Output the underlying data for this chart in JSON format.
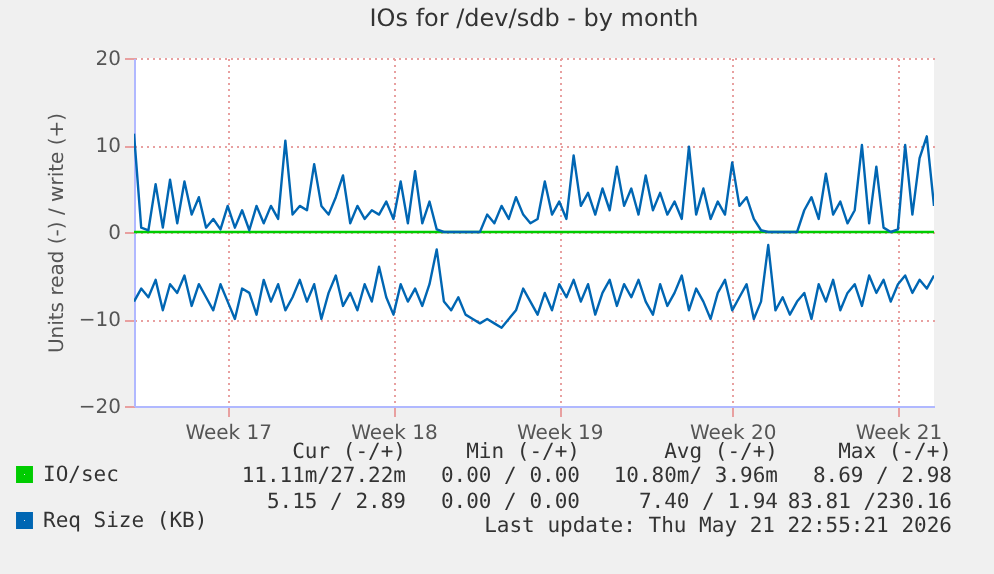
{
  "chart_data": {
    "type": "line",
    "title": "IOs for /dev/sdb - by month",
    "ylabel": "Units read (-) / write (+)",
    "categories": [
      null,
      null,
      null,
      null,
      null,
      null,
      null,
      null,
      null,
      null,
      null,
      null,
      null,
      "Week 17",
      null,
      null,
      null,
      null,
      null,
      null,
      null,
      null,
      null,
      null,
      null,
      null,
      null,
      null,
      null,
      null,
      null,
      null,
      null,
      null,
      null,
      null,
      "Week 18",
      null,
      null,
      null,
      null,
      null,
      null,
      null,
      null,
      null,
      null,
      null,
      null,
      null,
      null,
      null,
      null,
      null,
      null,
      null,
      null,
      null,
      null,
      "Week 19",
      null,
      null,
      null,
      null,
      null,
      null,
      null,
      null,
      null,
      null,
      null,
      null,
      null,
      null,
      null,
      null,
      null,
      null,
      null,
      null,
      null,
      null,
      null,
      "Week 20",
      null,
      null,
      null,
      null,
      null,
      null,
      null,
      null,
      null,
      null,
      null,
      null,
      null,
      null,
      null,
      null,
      null,
      null,
      null,
      null,
      null,
      null,
      "Week 21",
      null,
      null,
      null,
      null,
      null
    ],
    "ylim": [
      -20,
      20
    ],
    "yticks": [
      -20,
      -10,
      0,
      10,
      20
    ],
    "grid": true,
    "legend": "bottom left",
    "series": [
      {
        "name": "IO/sec",
        "color": "#00cc00",
        "values": [
          0,
          0,
          0,
          0,
          0,
          0,
          0,
          0,
          0,
          0,
          0,
          0,
          0,
          0,
          0,
          0,
          0,
          0,
          0,
          0,
          0,
          0,
          0,
          0,
          0,
          0,
          0,
          0,
          0,
          0,
          0,
          0,
          0,
          0,
          0,
          0,
          0,
          0,
          0,
          0,
          0,
          0,
          0,
          0,
          0,
          0,
          0,
          0,
          0,
          0,
          0,
          0,
          0,
          0,
          0,
          0,
          0,
          0,
          0,
          0,
          0,
          0,
          0,
          0,
          0,
          0,
          0,
          0,
          0,
          0,
          0,
          0,
          0,
          0,
          0,
          0,
          0,
          0,
          0,
          0,
          0,
          0,
          0,
          0,
          0,
          0,
          0,
          0,
          0,
          0,
          0,
          0,
          0,
          0,
          0,
          0,
          0,
          0,
          0,
          0,
          0,
          0,
          0,
          0,
          0,
          0,
          0,
          0,
          0,
          0,
          0,
          0
        ]
      },
      {
        "name": "Req Size (KB)",
        "color": "#0066b3",
        "values": [
          11.3,
          0.5,
          0.2,
          5.5,
          0.5,
          6,
          1,
          5.8,
          2,
          4,
          0.5,
          1.5,
          0.3,
          3,
          0.5,
          2.5,
          0.2,
          3,
          1,
          3,
          1.5,
          10.5,
          2,
          3,
          2.5,
          7.8,
          3,
          2,
          4,
          6.5,
          1,
          3,
          1.5,
          2.5,
          2,
          3.5,
          1.5,
          5.8,
          1,
          7,
          1,
          3.5,
          0.3,
          0,
          0,
          0,
          0,
          0,
          0,
          2,
          1,
          3,
          1.5,
          4,
          2,
          1,
          1.5,
          5.8,
          2,
          3.5,
          1.5,
          8.8,
          3,
          4.5,
          2,
          5,
          2.5,
          7.5,
          3,
          5,
          2,
          6.5,
          2.5,
          4.5,
          2,
          3.5,
          1.5,
          9.8,
          2,
          5,
          1.5,
          3.5,
          2,
          8,
          3,
          4,
          1.5,
          0.2,
          0,
          0,
          0,
          0,
          0,
          2.5,
          4,
          1.5,
          6.7,
          2,
          3.5,
          1,
          2.5,
          10,
          1,
          7.5,
          0.5,
          0,
          0.3,
          10,
          2,
          8.5,
          11,
          3
        ]
      },
      {
        "color": "#0066b3",
        "values": [
          -8,
          -6.5,
          -7.5,
          -5.5,
          -9,
          -6,
          -7,
          -5,
          -8.5,
          -6,
          -7.5,
          -9,
          -6,
          -8,
          -10,
          -6.5,
          -7,
          -9.5,
          -5.5,
          -8,
          -6,
          -9,
          -7.5,
          -5.5,
          -8,
          -6,
          -10,
          -7,
          -5,
          -8.5,
          -7,
          -9,
          -6,
          -8,
          -4,
          -7.5,
          -9.5,
          -6,
          -8,
          -6.5,
          -8.5,
          -6,
          -2,
          -8,
          -9,
          -7.5,
          -9.5,
          -10,
          -10.5,
          -10,
          -10.5,
          -11,
          -10,
          -9,
          -6.5,
          -8,
          -9.5,
          -7,
          -9,
          -6,
          -7.5,
          -5.5,
          -8,
          -6,
          -9.5,
          -7,
          -5.5,
          -8.5,
          -6,
          -7.5,
          -5.5,
          -8,
          -9.5,
          -6,
          -8.5,
          -7,
          -5,
          -9,
          -6.5,
          -8,
          -10,
          -7,
          -5.5,
          -9,
          -7.5,
          -6,
          -10,
          -8,
          -1.5,
          -9,
          -7.5,
          -9.5,
          -8,
          -7,
          -10,
          -6,
          -8,
          -5.5,
          -9,
          -7,
          -6,
          -8.5,
          -5,
          -7,
          -5.5,
          -8,
          -6,
          -5,
          -7,
          -5.5,
          -6.5,
          -5
        ]
      }
    ],
    "annotations": [
      "Cur (-/+)",
      "Min (-/+)",
      "Avg (-/+)",
      "Max (-/+)",
      "11.11m/27.22m",
      "0.00 / 0.00",
      "10.80m/ 3.96m",
      "8.69 / 2.98",
      "5.15 / 2.89",
      "0.00 / 0.00",
      "7.40 / 1.94",
      "83.81 /230.16",
      "Last update: Thu May 21 22:55:21 2026"
    ]
  }
}
